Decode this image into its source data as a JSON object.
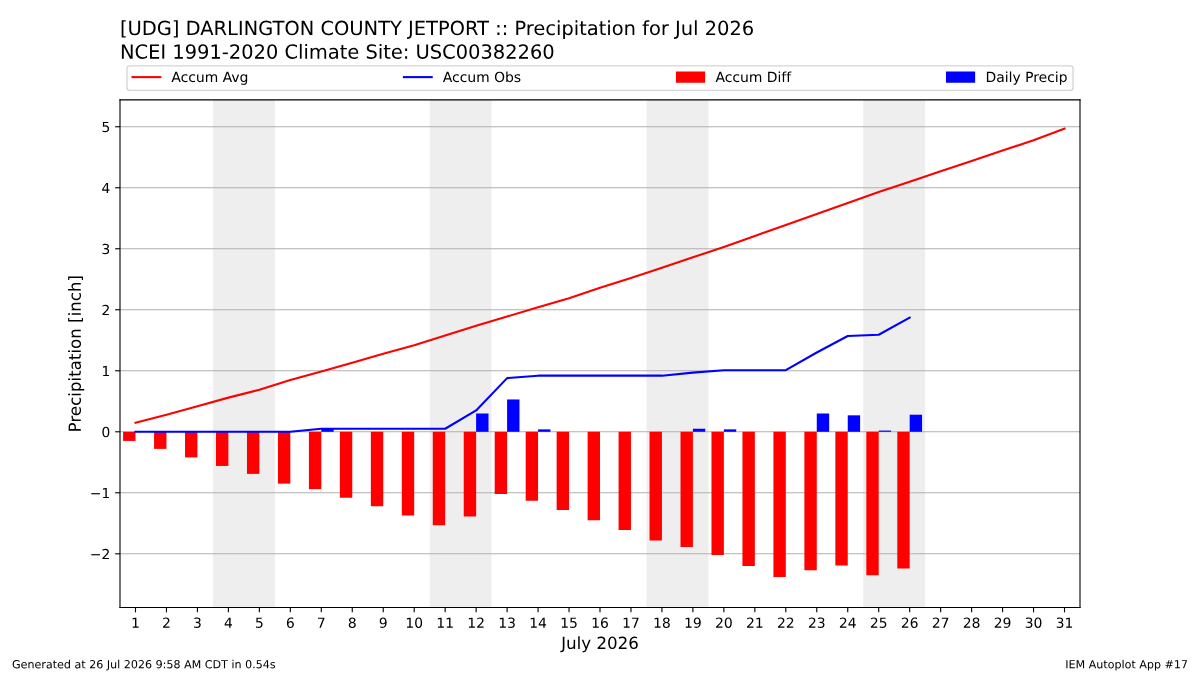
{
  "chart_data": {
    "type": "bar",
    "title": "[UDG] DARLINGTON COUNTY JETPORT :: Precipitation for Jul 2026",
    "subtitle": "NCEI 1991-2020 Climate Site: USC00382260",
    "xlabel": "July 2026",
    "ylabel": "Precipitation [inch]",
    "x": [
      1,
      2,
      3,
      4,
      5,
      6,
      7,
      8,
      9,
      10,
      11,
      12,
      13,
      14,
      15,
      16,
      17,
      18,
      19,
      20,
      21,
      22,
      23,
      24,
      25,
      26,
      27,
      28,
      29,
      30,
      31
    ],
    "series": [
      {
        "name": "Accum Avg",
        "type": "line",
        "color": "#ff0000",
        "values": [
          0.15,
          0.28,
          0.42,
          0.56,
          0.69,
          0.85,
          0.99,
          1.13,
          1.28,
          1.42,
          1.58,
          1.74,
          1.89,
          2.04,
          2.19,
          2.36,
          2.52,
          2.69,
          2.86,
          3.03,
          3.21,
          3.39,
          3.57,
          3.75,
          3.93,
          4.1,
          4.27,
          4.44,
          4.61,
          4.78,
          4.97
        ]
      },
      {
        "name": "Accum Obs",
        "type": "line",
        "color": "#0000ff",
        "values": [
          0,
          0,
          0,
          0,
          0,
          0,
          0.05,
          0.05,
          0.05,
          0.05,
          0.05,
          0.35,
          0.88,
          0.92,
          0.92,
          0.92,
          0.92,
          0.92,
          0.97,
          1.01,
          1.01,
          1.01,
          1.3,
          1.57,
          1.59,
          1.87,
          null,
          null,
          null,
          null,
          null
        ]
      },
      {
        "name": "Accum Diff",
        "color": "#ff0000",
        "values": [
          -0.15,
          -0.28,
          -0.42,
          -0.56,
          -0.69,
          -0.85,
          -0.94,
          -1.08,
          -1.22,
          -1.37,
          -1.53,
          -1.39,
          -1.02,
          -1.13,
          -1.28,
          -1.45,
          -1.61,
          -1.78,
          -1.89,
          -2.02,
          -2.2,
          -2.38,
          -2.27,
          -2.19,
          -2.35,
          -2.24,
          null,
          null,
          null,
          null,
          null
        ]
      },
      {
        "name": "Daily Precip",
        "color": "#0000ff",
        "values": [
          0,
          0,
          0,
          0,
          0,
          0,
          0.05,
          0,
          0,
          0,
          0,
          0.3,
          0.53,
          0.04,
          0,
          0,
          0,
          0,
          0.05,
          0.04,
          0,
          0,
          0.3,
          0.27,
          0.02,
          0.28,
          null,
          null,
          null,
          null,
          null
        ]
      }
    ],
    "xlim": [
      0.5,
      31.5
    ],
    "xticks": [
      1,
      2,
      3,
      4,
      5,
      6,
      7,
      8,
      9,
      10,
      11,
      12,
      13,
      14,
      15,
      16,
      17,
      18,
      19,
      20,
      21,
      22,
      23,
      24,
      25,
      26,
      27,
      28,
      29,
      30,
      31
    ],
    "ylim": [
      -2.88,
      5.44
    ],
    "yticks": [
      {
        "value": -2,
        "label": "−2"
      },
      {
        "value": -1,
        "label": "−1"
      },
      0,
      1,
      2,
      3,
      4,
      5
    ],
    "bands": [
      {
        "axis": "x",
        "from": 3.5,
        "to": 5.5,
        "color": "#eeeeee"
      },
      {
        "axis": "x",
        "from": 10.5,
        "to": 12.5,
        "color": "#eeeeee"
      },
      {
        "axis": "x",
        "from": 17.5,
        "to": 19.5,
        "color": "#eeeeee"
      },
      {
        "axis": "x",
        "from": 24.5,
        "to": 26.5,
        "color": "#eeeeee"
      }
    ],
    "grid": "y",
    "legend": "top",
    "annotations": [
      "Generated at 26 Jul 2026 9:58 AM CDT in 0.54s",
      "IEM Autoplot App #17"
    ]
  }
}
